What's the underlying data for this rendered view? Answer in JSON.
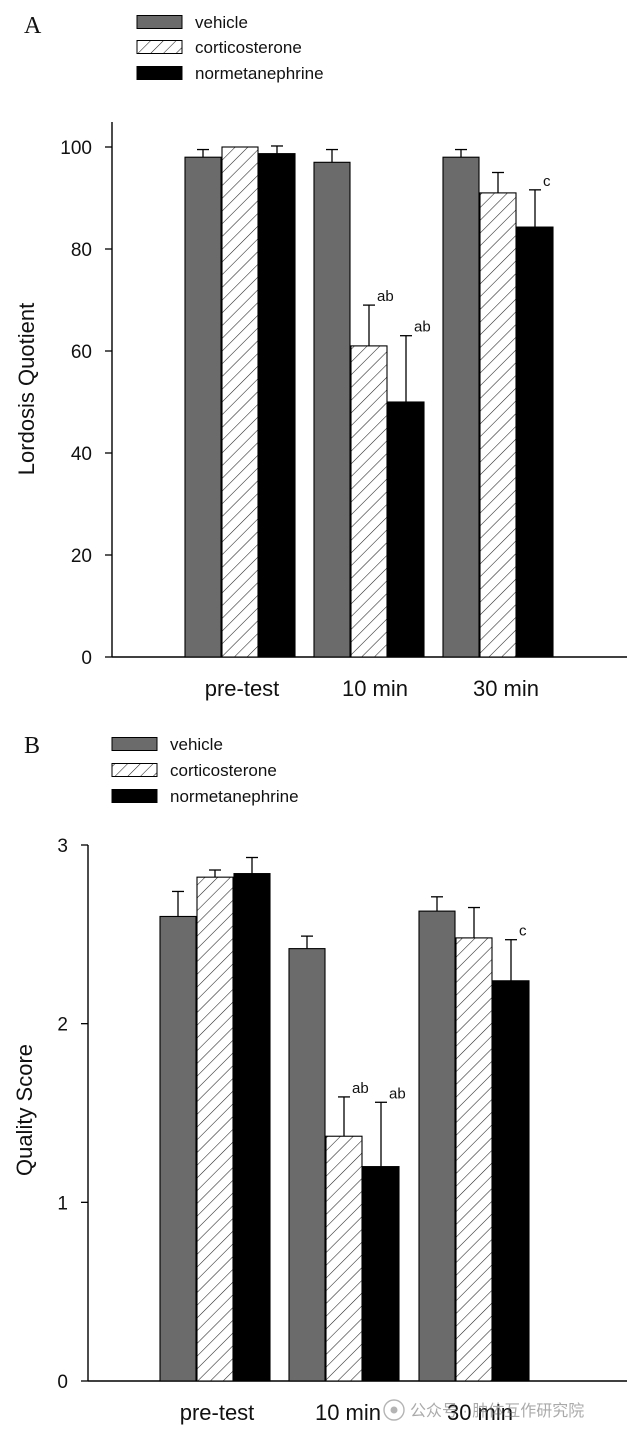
{
  "chart_data": [
    {
      "panel_letter": "A",
      "type": "bar",
      "categories": [
        "pre-test",
        "10 min",
        "30 min"
      ],
      "ylabel": "Lordosis Quotient",
      "ylim": [
        0,
        105
      ],
      "yticks": [
        0,
        20,
        40,
        60,
        80,
        100
      ],
      "ytick_labels": [
        "0",
        "20",
        "40",
        "60",
        "80",
        "100"
      ],
      "legend_position": "top-left",
      "series": [
        {
          "name": "vehicle",
          "values": [
            98,
            97,
            98
          ],
          "errors": [
            1.5,
            2.5,
            1.5
          ],
          "pattern": "gray",
          "annotations": [
            "",
            "",
            ""
          ]
        },
        {
          "name": "corticosterone",
          "values": [
            100,
            61,
            91
          ],
          "errors": [
            0,
            8,
            4
          ],
          "pattern": "hatch",
          "annotations": [
            "",
            "ab",
            ""
          ]
        },
        {
          "name": "normetanephrine",
          "values": [
            98.7,
            50,
            84.3
          ],
          "errors": [
            1.5,
            13,
            7.3
          ],
          "pattern": "black",
          "annotations": [
            "",
            "ab",
            "c"
          ]
        }
      ]
    },
    {
      "panel_letter": "B",
      "type": "bar",
      "categories": [
        "pre-test",
        "10 min",
        "30 min"
      ],
      "ylabel": "Quality Score",
      "ylim": [
        0,
        3.1
      ],
      "yticks": [
        0,
        1,
        2,
        3
      ],
      "ytick_labels": [
        "0",
        "1",
        "2",
        "3"
      ],
      "legend_position": "top-left",
      "series": [
        {
          "name": "vehicle",
          "values": [
            2.6,
            2.42,
            2.63
          ],
          "errors": [
            0.14,
            0.07,
            0.08
          ],
          "pattern": "gray",
          "annotations": [
            "",
            "",
            ""
          ]
        },
        {
          "name": "corticosterone",
          "values": [
            2.82,
            1.37,
            2.48
          ],
          "errors": [
            0.04,
            0.22,
            0.17
          ],
          "pattern": "hatch",
          "annotations": [
            "",
            "ab",
            ""
          ]
        },
        {
          "name": "normetanephrine",
          "values": [
            2.84,
            1.2,
            2.24
          ],
          "errors": [
            0.09,
            0.36,
            0.23
          ],
          "pattern": "black",
          "annotations": [
            "",
            "ab",
            "c"
          ]
        }
      ]
    }
  ],
  "watermark": "公众号 · 肿体互作研究院",
  "colors": {
    "gray": "#6b6b6b",
    "black": "#000000",
    "hatch_stroke": "#222222",
    "axis": "#000000"
  }
}
